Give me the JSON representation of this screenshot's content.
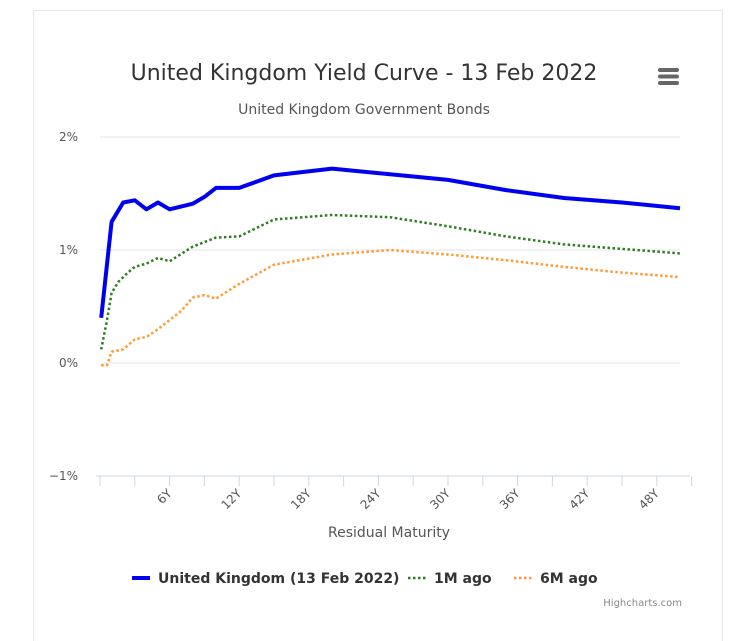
{
  "menu_icon": "hamburger-menu-icon",
  "credits": "Highcharts.com",
  "chart_data": {
    "type": "line",
    "title": "United Kingdom Yield Curve - 13 Feb 2022",
    "subtitle": "United Kingdom Government Bonds",
    "xlabel": "Residual Maturity",
    "ylabel": "",
    "xlim": [
      0,
      50
    ],
    "ylim": [
      -1,
      2
    ],
    "grid": true,
    "legend_position": "bottom",
    "x_ticks": [
      {
        "v": 6,
        "label": "6Y"
      },
      {
        "v": 12,
        "label": "12Y"
      },
      {
        "v": 18,
        "label": "18Y"
      },
      {
        "v": 24,
        "label": "24Y"
      },
      {
        "v": 30,
        "label": "30Y"
      },
      {
        "v": 36,
        "label": "36Y"
      },
      {
        "v": 42,
        "label": "42Y"
      },
      {
        "v": 48,
        "label": "48Y"
      }
    ],
    "y_ticks": [
      {
        "v": 2,
        "label": "2%"
      },
      {
        "v": 1,
        "label": "1%"
      },
      {
        "v": 0,
        "label": "0%"
      },
      {
        "v": -1,
        "label": "−1%"
      }
    ],
    "series": [
      {
        "name": "United Kingdom (13 Feb 2022)",
        "color": "#0000ee",
        "dash": "solid",
        "points": [
          [
            0.1,
            0.4
          ],
          [
            1,
            1.25
          ],
          [
            2,
            1.42
          ],
          [
            3,
            1.44
          ],
          [
            4,
            1.36
          ],
          [
            5,
            1.42
          ],
          [
            6,
            1.36
          ],
          [
            8,
            1.41
          ],
          [
            9,
            1.47
          ],
          [
            10,
            1.55
          ],
          [
            12,
            1.55
          ],
          [
            15,
            1.66
          ],
          [
            20,
            1.72
          ],
          [
            25,
            1.67
          ],
          [
            30,
            1.62
          ],
          [
            35,
            1.53
          ],
          [
            40,
            1.46
          ],
          [
            45,
            1.42
          ],
          [
            50,
            1.37
          ]
        ]
      },
      {
        "name": "1M ago",
        "color": "#2e7d1e",
        "dash": "dot",
        "points": [
          [
            0.1,
            0.12
          ],
          [
            0.6,
            0.38
          ],
          [
            1,
            0.62
          ],
          [
            1.6,
            0.72
          ],
          [
            2.4,
            0.8
          ],
          [
            3,
            0.85
          ],
          [
            4,
            0.88
          ],
          [
            5,
            0.93
          ],
          [
            6,
            0.9
          ],
          [
            8,
            1.03
          ],
          [
            10,
            1.11
          ],
          [
            12,
            1.12
          ],
          [
            15,
            1.27
          ],
          [
            20,
            1.31
          ],
          [
            25,
            1.29
          ],
          [
            30,
            1.21
          ],
          [
            35,
            1.12
          ],
          [
            40,
            1.05
          ],
          [
            45,
            1.01
          ],
          [
            50,
            0.97
          ]
        ]
      },
      {
        "name": "6M ago",
        "color": "#ff9933",
        "dash": "dot",
        "points": [
          [
            0.1,
            -0.02
          ],
          [
            0.6,
            -0.02
          ],
          [
            1,
            0.1
          ],
          [
            2,
            0.12
          ],
          [
            3,
            0.21
          ],
          [
            4,
            0.23
          ],
          [
            5,
            0.3
          ],
          [
            6,
            0.38
          ],
          [
            7,
            0.46
          ],
          [
            8,
            0.58
          ],
          [
            9,
            0.6
          ],
          [
            10,
            0.57
          ],
          [
            12,
            0.7
          ],
          [
            15,
            0.87
          ],
          [
            20,
            0.96
          ],
          [
            25,
            1.0
          ],
          [
            30,
            0.96
          ],
          [
            35,
            0.91
          ],
          [
            40,
            0.85
          ],
          [
            45,
            0.8
          ],
          [
            50,
            0.76
          ]
        ]
      }
    ]
  }
}
